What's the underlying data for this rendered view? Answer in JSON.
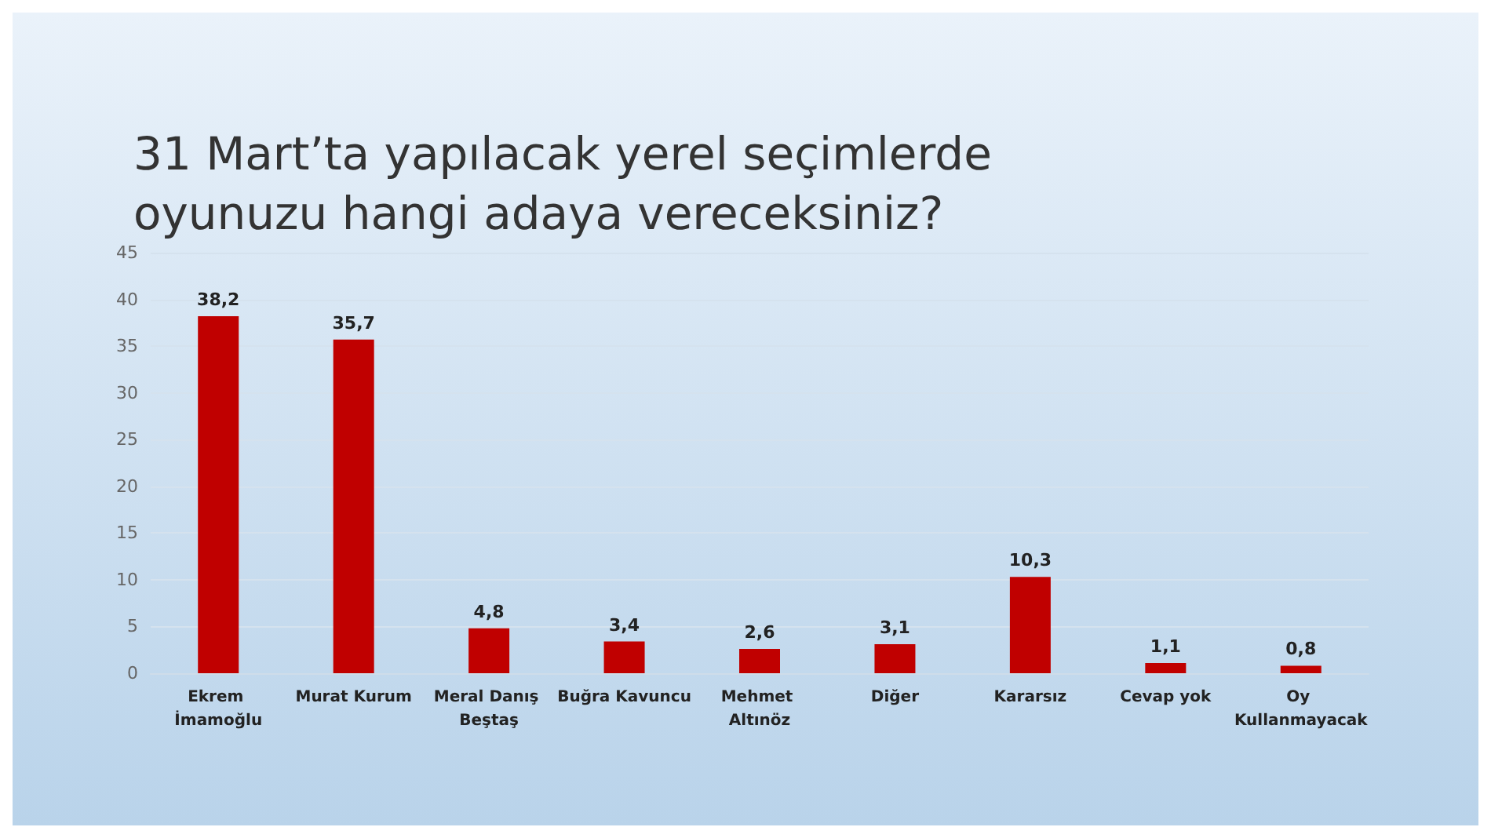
{
  "chart_data": {
    "type": "bar",
    "title": "31 Mart’ta yapılacak yerel seçimlerde oyunuzu hangi adaya vereceksiniz?",
    "categories": [
      "Ekrem İmamoğlu",
      "Murat Kurum",
      "Meral Danış Beştaş",
      "Buğra Kavuncu",
      "Mehmet Altınöz",
      "Diğer",
      "Kararsız",
      "Cevap yok",
      "Oy Kullanmayacak"
    ],
    "values": [
      38.2,
      35.7,
      4.8,
      3.4,
      2.6,
      3.1,
      10.3,
      1.1,
      0.8
    ],
    "value_labels": [
      "38,2",
      "35,7",
      "4,8",
      "3,4",
      "2,6",
      "3,1",
      "10,3",
      "1,1",
      "0,8"
    ],
    "color": "#c00000",
    "ylim": [
      0,
      45
    ],
    "yticks": [
      0,
      5,
      10,
      15,
      20,
      25,
      30,
      35,
      40,
      45
    ],
    "grid": "y"
  }
}
